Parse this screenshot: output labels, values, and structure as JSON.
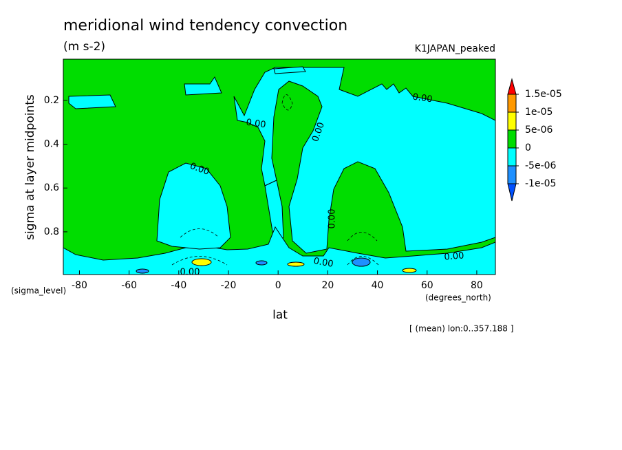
{
  "chart_data": {
    "type": "contour",
    "title": "meridional wind tendency convection",
    "subtitle": "(m s-2)",
    "dataset": "K1JAPAN_peaked",
    "y_label": "sigma at layer midpoints",
    "y_units": "(sigma_level)",
    "x_label": "lat",
    "x_units": "(degrees_north)",
    "note": "[ (mean) lon:0..357.188 ]",
    "xlim": [
      -86.5,
      87.5
    ],
    "xticks": [
      -80,
      -60,
      -40,
      -20,
      0,
      20,
      40,
      60,
      80
    ],
    "ylim": [
      0.012,
      0.995
    ],
    "y_inverted": true,
    "yticks": [
      0.2,
      0.4,
      0.6,
      0.8
    ],
    "levels": [
      {
        "value": 1.5e-05,
        "label": "1.5e-05"
      },
      {
        "value": 1e-05,
        "label": "1e-05"
      },
      {
        "value": 5e-06,
        "label": "5e-06"
      },
      0,
      {
        "value": -5e-06,
        "label": "-5e-06"
      },
      {
        "value": -1e-05,
        "label": "-1e-05"
      }
    ],
    "level_colors": [
      "#ff0000",
      "#ff9900",
      "#ffff00",
      "#00dd00",
      "#00ffff",
      "#1e90ff",
      "#0050ff"
    ],
    "contour_labels": [
      "0.00",
      "0.00",
      "0.00",
      "0.00",
      "0.00",
      "0.00",
      "0.00",
      "0.00"
    ]
  }
}
